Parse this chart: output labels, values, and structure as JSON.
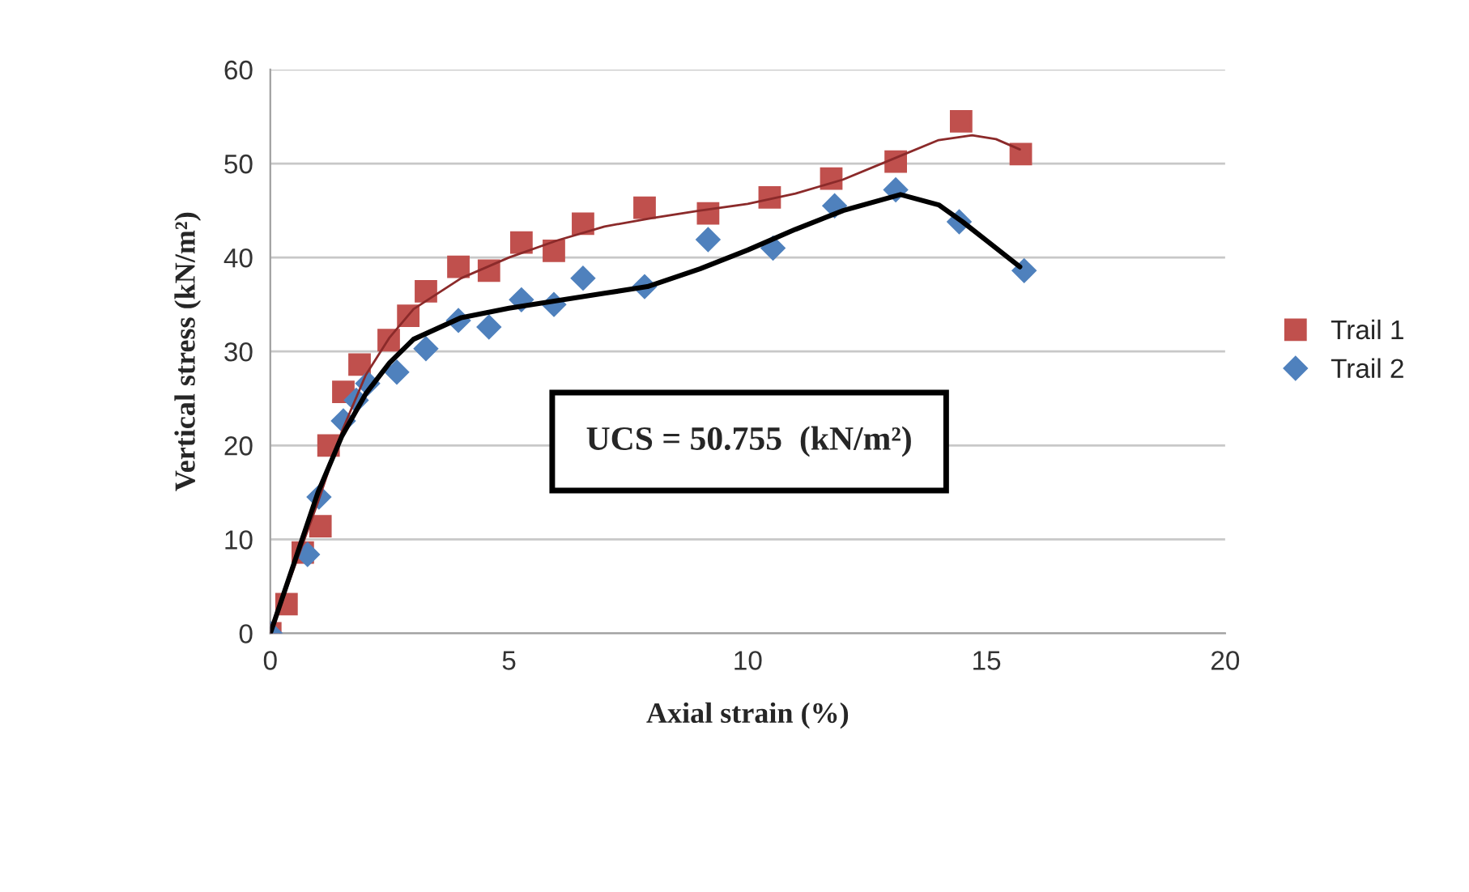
{
  "chart_data": {
    "type": "scatter",
    "xlabel": "Axial strain (%)",
    "ylabel": "Vertical stress (kN/m²)",
    "xlim": [
      0,
      20
    ],
    "xticks": [
      0,
      5,
      10,
      15,
      20
    ],
    "ylim": [
      0,
      60
    ],
    "yticks": [
      0,
      10,
      20,
      30,
      40,
      50,
      60
    ],
    "grid": "y",
    "legend": "right",
    "annotations": [
      "UCS = 50.755  (kN/m²)"
    ],
    "series": [
      {
        "name": "Trail 1",
        "marker": "square",
        "color": "#c0504d",
        "x": [
          0,
          0.34,
          0.68,
          1.05,
          1.22,
          1.53,
          1.87,
          2.48,
          2.89,
          3.26,
          3.94,
          4.58,
          5.26,
          5.94,
          6.55,
          7.84,
          9.17,
          10.46,
          11.75,
          13.1,
          14.47,
          15.72
        ],
        "values": [
          0,
          3.1,
          8.6,
          11.4,
          20.0,
          25.7,
          28.6,
          31.2,
          33.8,
          36.4,
          39.0,
          38.6,
          41.6,
          40.7,
          43.6,
          45.3,
          44.7,
          46.4,
          48.4,
          50.2,
          54.5,
          51.0
        ]
      },
      {
        "name": "Trail 2",
        "marker": "diamond",
        "color": "#4f81bd",
        "x": [
          0,
          0.78,
          1.02,
          1.53,
          1.8,
          2.04,
          2.65,
          3.26,
          3.94,
          4.58,
          5.26,
          5.94,
          6.55,
          7.84,
          9.17,
          10.53,
          11.82,
          13.1,
          14.43,
          15.79
        ],
        "values": [
          0,
          8.4,
          14.5,
          22.6,
          24.8,
          26.6,
          27.8,
          30.3,
          33.3,
          32.6,
          35.5,
          35.0,
          37.8,
          36.9,
          41.9,
          41.0,
          45.5,
          47.2,
          43.8,
          38.6
        ]
      },
      {
        "type": "line",
        "line_style": "solid",
        "color": "#8b2a2a",
        "x": [
          0,
          0.5,
          1,
          1.5,
          2,
          2.5,
          3,
          4,
          5,
          6,
          7,
          8,
          9,
          10,
          11,
          12,
          13,
          14,
          14.7,
          15.2,
          15.7
        ],
        "values": [
          0,
          7,
          14,
          21.5,
          27.5,
          31.5,
          34.5,
          37.8,
          40,
          41.8,
          43.3,
          44.2,
          45,
          45.7,
          46.8,
          48.3,
          50.4,
          52.5,
          53,
          52.6,
          51.5
        ]
      },
      {
        "type": "line",
        "line_style": "solid",
        "color": "#000000",
        "x": [
          0,
          0.5,
          1,
          1.5,
          2,
          2.5,
          3,
          4,
          5,
          6,
          7,
          7.9,
          9,
          10,
          11,
          12,
          13.2,
          14,
          14.5,
          15,
          15.7
        ],
        "values": [
          0,
          7.5,
          15,
          21,
          25.5,
          28.8,
          31.3,
          33.6,
          34.6,
          35.4,
          36.2,
          36.9,
          38.8,
          40.8,
          43,
          45,
          46.7,
          45.6,
          43.8,
          41.8,
          39
        ]
      }
    ]
  }
}
